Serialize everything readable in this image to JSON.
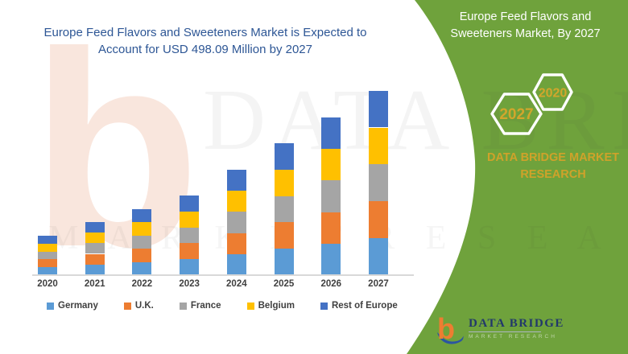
{
  "chart": {
    "title": "Europe Feed Flavors and Sweeteners Market is Expected to Account for USD 498.09 Million by 2027"
  },
  "chart_data": {
    "type": "bar",
    "stacked": true,
    "title": "Europe Feed Flavors and Sweeteners Market is Expected to Account for USD 498.09 Million by 2027",
    "value_unit": "USD Million",
    "categories": [
      "2020",
      "2021",
      "2022",
      "2023",
      "2024",
      "2025",
      "2026",
      "2027"
    ],
    "series": [
      {
        "name": "Germany",
        "color": "#5B9BD5",
        "values": [
          21.3,
          28.7,
          35.8,
          43.0,
          56.9,
          71.2,
          85.1,
          99.6
        ]
      },
      {
        "name": "U.K.",
        "color": "#ED7D31",
        "values": [
          21.3,
          28.7,
          35.8,
          43.0,
          56.9,
          71.2,
          85.1,
          99.6
        ]
      },
      {
        "name": "France",
        "color": "#A5A5A5",
        "values": [
          21.3,
          28.7,
          35.8,
          43.0,
          56.9,
          71.2,
          85.1,
          99.6
        ]
      },
      {
        "name": "Belgium",
        "color": "#FFC000",
        "values": [
          21.3,
          28.7,
          35.8,
          43.0,
          56.9,
          71.2,
          85.1,
          99.6
        ]
      },
      {
        "name": "Rest of Europe",
        "color": "#4472C4",
        "values": [
          21.3,
          28.7,
          35.8,
          43.0,
          56.9,
          71.2,
          85.1,
          99.6
        ]
      }
    ],
    "totals_estimated": [
      106.5,
      143.5,
      179.0,
      215.0,
      284.5,
      356.0,
      425.5,
      498.09
    ],
    "grid": false,
    "y_axis_labels_visible": false,
    "legend_position": "bottom"
  },
  "panel": {
    "title_line1": "Europe Feed Flavors and",
    "title_line2": "Sweeteners Market, By 2027",
    "hex_front_year": "2027",
    "hex_back_year": "2020",
    "brand_line1": "DATA BRIDGE MARKET",
    "brand_line2": "RESEARCH"
  },
  "logo": {
    "name": "DATA BRIDGE",
    "sub": "MARKET RESEARCH"
  },
  "watermarks": {
    "letter": "b",
    "brand_serif": "DATA BRIDGE",
    "row_letters": "M A R K E T   R E S E A R C H"
  },
  "colors": {
    "green_panel": "#6FA23C",
    "gold": "#CFA22A",
    "title_blue": "#2D5695",
    "axis_gray": "#D9D9D9",
    "label_gray": "#404040",
    "logo_navy": "#22386B",
    "logo_orange": "#ED7D31",
    "logo_blue": "#2B55A2"
  }
}
